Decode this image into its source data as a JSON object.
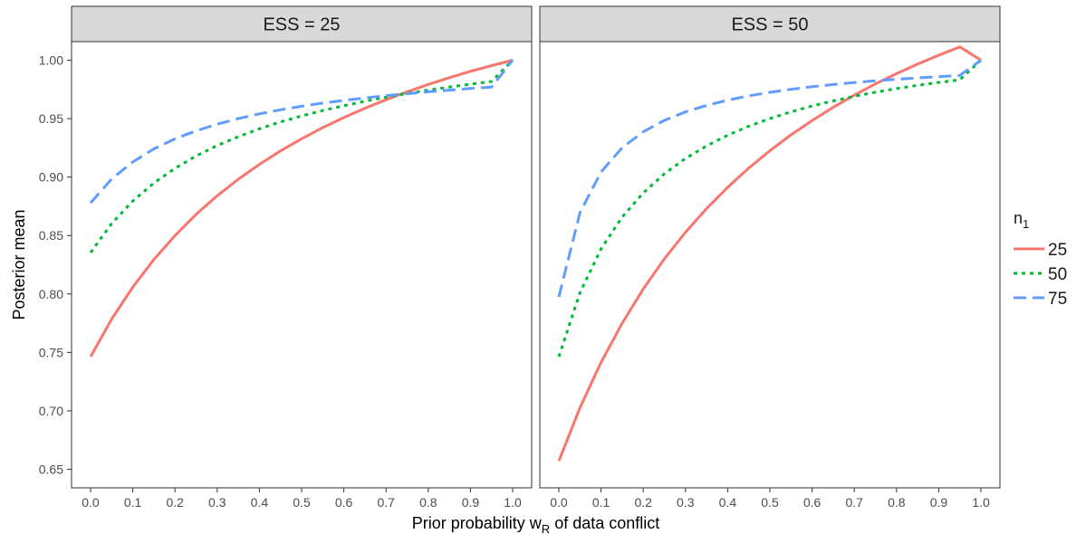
{
  "chart_data": {
    "type": "line",
    "xlabel_parts": [
      "Prior probability w",
      "R",
      " of data conflict"
    ],
    "ylabel": "Posterior mean",
    "xlim": [
      0.0,
      1.0
    ],
    "ylim": [
      0.65,
      1.0
    ],
    "x_ticks": [
      "0.0",
      "0.1",
      "0.2",
      "0.3",
      "0.4",
      "0.5",
      "0.6",
      "0.7",
      "0.8",
      "0.9",
      "1.0"
    ],
    "y_ticks": [
      "0.65",
      "0.70",
      "0.75",
      "0.80",
      "0.85",
      "0.90",
      "0.95",
      "1.00"
    ],
    "grid": false,
    "legend": {
      "title_main": "n",
      "title_sub": "1",
      "placement": "right",
      "entries": [
        "25",
        "50",
        "75"
      ]
    },
    "x": [
      0.0,
      0.05,
      0.1,
      0.15,
      0.2,
      0.25,
      0.3,
      0.35,
      0.4,
      0.45,
      0.5,
      0.55,
      0.6,
      0.65,
      0.7,
      0.75,
      0.8,
      0.85,
      0.9,
      0.95,
      1.0
    ],
    "panels": [
      {
        "strip": "ESS = 25",
        "series": [
          {
            "name": "25",
            "color": "#F8766D",
            "dash": "solid",
            "values": [
              0.7463,
              0.7785,
              0.8059,
              0.8295,
              0.85,
              0.8681,
              0.884,
              0.8982,
              0.9109,
              0.9224,
              0.9328,
              0.9423,
              0.9509,
              0.9589,
              0.9662,
              0.973,
              0.9793,
              0.9851,
              0.9905,
              0.9954,
              1.0
            ]
          },
          {
            "name": "50",
            "color": "#00BA38",
            "dash": "dotted",
            "values": [
              0.8354,
              0.8602,
              0.8795,
              0.8949,
              0.9075,
              0.9181,
              0.927,
              0.9346,
              0.9413,
              0.9472,
              0.9523,
              0.957,
              0.9611,
              0.9649,
              0.9684,
              0.9715,
              0.9744,
              0.977,
              0.9795,
              0.9818,
              1.0
            ]
          },
          {
            "name": "75",
            "color": "#619CFF",
            "dash": "dashed",
            "values": [
              0.878,
              0.8984,
              0.913,
              0.9241,
              0.9327,
              0.9396,
              0.9453,
              0.9501,
              0.9541,
              0.9576,
              0.9606,
              0.9633,
              0.9656,
              0.9677,
              0.9697,
              0.9714,
              0.973,
              0.9744,
              0.9758,
              0.977,
              1.0
            ]
          }
        ]
      },
      {
        "strip": "ESS = 50",
        "series": [
          {
            "name": "25",
            "color": "#F8766D",
            "dash": "solid",
            "values": [
              0.6571,
              0.7026,
              0.7415,
              0.775,
              0.8043,
              0.83,
              0.8528,
              0.8731,
              0.8913,
              0.9077,
              0.9226,
              0.9361,
              0.9484,
              0.9597,
              0.9701,
              0.9797,
              0.9885,
              0.9967,
              1.0043,
              1.0114,
              1.0
            ]
          },
          {
            "name": "50",
            "color": "#00BA38",
            "dash": "dotted",
            "values": [
              0.7463,
              0.8011,
              0.8386,
              0.8658,
              0.8865,
              0.9028,
              0.9159,
              0.9267,
              0.9358,
              0.9435,
              0.9501,
              0.9558,
              0.9608,
              0.9652,
              0.9691,
              0.9726,
              0.9757,
              0.9785,
              0.981,
              0.9833,
              1.0
            ]
          },
          {
            "name": "75",
            "color": "#619CFF",
            "dash": "dashed",
            "values": [
              0.7974,
              0.8695,
              0.9044,
              0.9251,
              0.9388,
              0.9485,
              0.9557,
              0.9613,
              0.9658,
              0.9695,
              0.9725,
              0.9751,
              0.9773,
              0.9792,
              0.9809,
              0.9824,
              0.9837,
              0.9849,
              0.9859,
              0.9869,
              1.0
            ]
          }
        ]
      }
    ]
  }
}
